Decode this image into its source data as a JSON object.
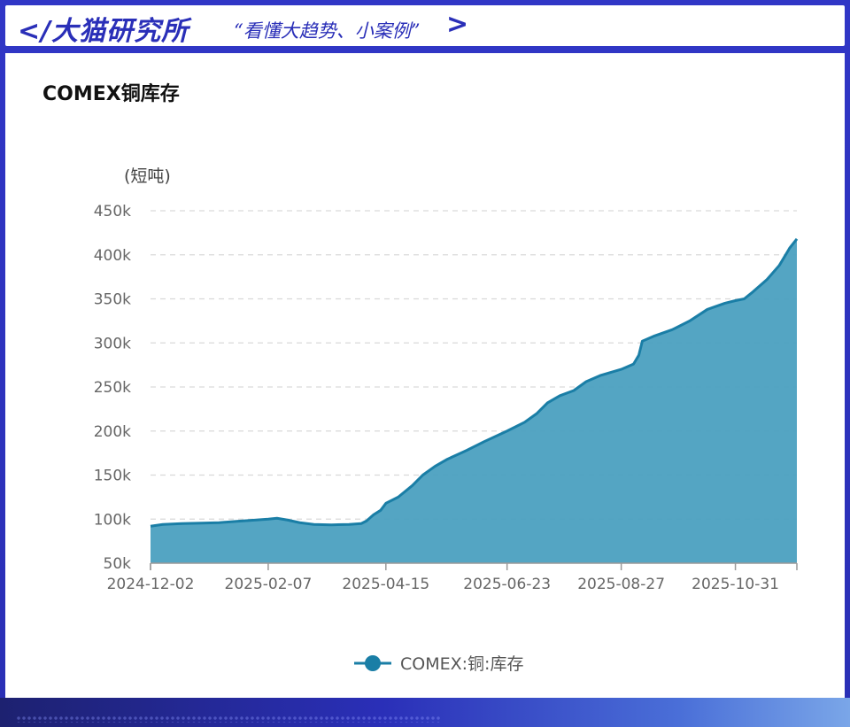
{
  "header": {
    "brand": "</大猫研究所",
    "slogan": "“看懂大趋势、小案例”",
    "brand_close": ">"
  },
  "colors": {
    "brand": "#2a2fb8",
    "series_fill": "#4ba0c0",
    "series_line": "#1a7ea6",
    "grid": "#d9d9d9"
  },
  "chart_data": {
    "type": "area",
    "title": "COMEX铜库存",
    "ylabel": "(短吨)",
    "xlabel": "",
    "ylim": [
      50000,
      450000
    ],
    "y_ticks": [
      {
        "value": 50000,
        "label": "50k"
      },
      {
        "value": 100000,
        "label": "100k"
      },
      {
        "value": 150000,
        "label": "150k"
      },
      {
        "value": 200000,
        "label": "200k"
      },
      {
        "value": 250000,
        "label": "250k"
      },
      {
        "value": 300000,
        "label": "300k"
      },
      {
        "value": 350000,
        "label": "350k"
      },
      {
        "value": 400000,
        "label": "400k"
      },
      {
        "value": 450000,
        "label": "450k"
      }
    ],
    "x_ticks": [
      "2024-12-02",
      "2025-02-07",
      "2025-04-15",
      "2025-06-23",
      "2025-08-27",
      "2025-10-31"
    ],
    "xlim": [
      "2024-12-02",
      "2025-12-05"
    ],
    "grid": true,
    "legend": "bottom",
    "series": [
      {
        "name": "COMEX:铜:库存",
        "points": [
          [
            "2024-12-02",
            92000
          ],
          [
            "2024-12-09",
            94000
          ],
          [
            "2024-12-20",
            95000
          ],
          [
            "2024-12-31",
            95500
          ],
          [
            "2025-01-10",
            96000
          ],
          [
            "2025-01-20",
            97500
          ],
          [
            "2025-01-31",
            99000
          ],
          [
            "2025-02-07",
            100000
          ],
          [
            "2025-02-12",
            101000
          ],
          [
            "2025-02-18",
            99000
          ],
          [
            "2025-02-25",
            96000
          ],
          [
            "2025-03-05",
            94000
          ],
          [
            "2025-03-15",
            93500
          ],
          [
            "2025-03-25",
            94000
          ],
          [
            "2025-04-01",
            95000
          ],
          [
            "2025-04-04",
            98000
          ],
          [
            "2025-04-08",
            105000
          ],
          [
            "2025-04-12",
            110000
          ],
          [
            "2025-04-15",
            118000
          ],
          [
            "2025-04-22",
            125000
          ],
          [
            "2025-04-30",
            138000
          ],
          [
            "2025-05-06",
            150000
          ],
          [
            "2025-05-13",
            160000
          ],
          [
            "2025-05-20",
            168000
          ],
          [
            "2025-05-31",
            178000
          ],
          [
            "2025-06-10",
            188000
          ],
          [
            "2025-06-23",
            200000
          ],
          [
            "2025-07-03",
            210000
          ],
          [
            "2025-07-10",
            220000
          ],
          [
            "2025-07-16",
            232000
          ],
          [
            "2025-07-23",
            240000
          ],
          [
            "2025-07-31",
            246000
          ],
          [
            "2025-08-07",
            256000
          ],
          [
            "2025-08-15",
            263000
          ],
          [
            "2025-08-27",
            270000
          ],
          [
            "2025-09-03",
            276000
          ],
          [
            "2025-09-06",
            286000
          ],
          [
            "2025-09-08",
            302000
          ],
          [
            "2025-09-15",
            308000
          ],
          [
            "2025-09-25",
            315000
          ],
          [
            "2025-10-05",
            325000
          ],
          [
            "2025-10-15",
            338000
          ],
          [
            "2025-10-25",
            345000
          ],
          [
            "2025-10-31",
            348000
          ],
          [
            "2025-11-05",
            350000
          ],
          [
            "2025-11-10",
            358000
          ],
          [
            "2025-11-18",
            372000
          ],
          [
            "2025-11-25",
            388000
          ],
          [
            "2025-12-01",
            408000
          ],
          [
            "2025-12-05",
            418000
          ]
        ]
      }
    ]
  }
}
